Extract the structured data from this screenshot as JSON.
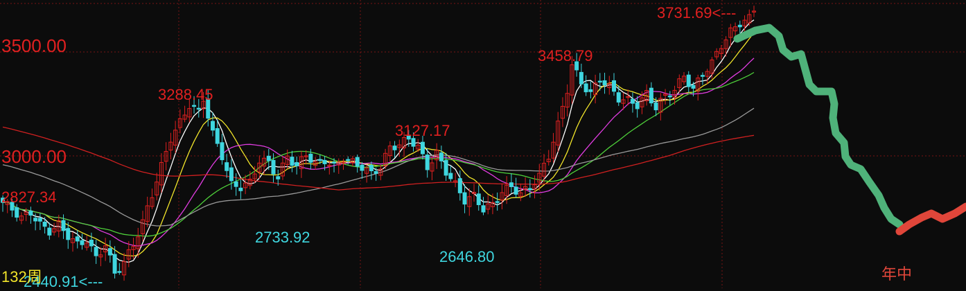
{
  "chart_data": {
    "type": "candlestick",
    "period_label": "132周",
    "annotation_label": "年中",
    "y_axis": {
      "ticks": [
        {
          "value": 3500,
          "label": "3500.00"
        },
        {
          "value": 3000,
          "label": "3000.00"
        }
      ]
    },
    "extreme_labels": [
      {
        "value": 3731.69,
        "label": "3731.69<---",
        "kind": "high"
      },
      {
        "value": 3458.79,
        "label": "3458.79",
        "kind": "high"
      },
      {
        "value": 3288.45,
        "label": "3288.45",
        "kind": "high"
      },
      {
        "value": 3127.17,
        "label": "3127.17",
        "kind": "high"
      },
      {
        "value": 2827.34,
        "label": "2827.34",
        "kind": "high"
      },
      {
        "value": 2733.92,
        "label": "2733.92",
        "kind": "low"
      },
      {
        "value": 2646.8,
        "label": "2646.80",
        "kind": "low"
      },
      {
        "value": 2440.91,
        "label": "2440.91<---",
        "kind": "low"
      }
    ],
    "colors": {
      "up": "#e02020",
      "down": "#3fd6df",
      "grid": "#7a1515",
      "ma_lines": [
        "#ffffff",
        "#f2e52a",
        "#e03ce0",
        "#4ed03a",
        "#9a9a9a",
        "#d02020"
      ],
      "projection_down": "#4fb27a",
      "projection_up": "#e0463a",
      "axis_label": "#e02020",
      "low_label": "#3fd6df",
      "period_label": "#f2e52a",
      "annotation_label": "#e0463a"
    }
  }
}
